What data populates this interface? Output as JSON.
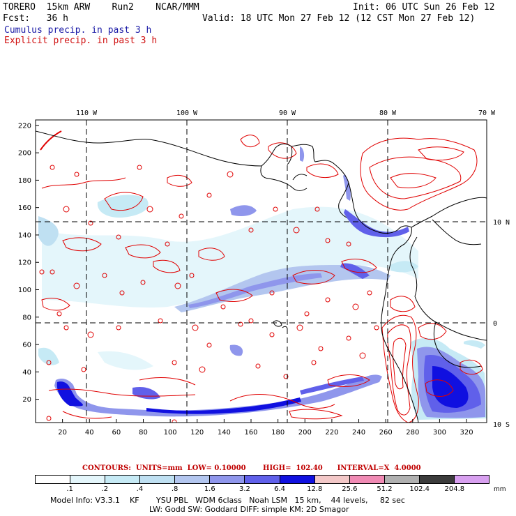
{
  "header": {
    "model": "TORERO  15km ARW    Run2    NCAR/MMM",
    "init": "Init: 06 UTC Sun 26 Feb 12",
    "fcst": "Fcst:   36 h",
    "valid": "Valid: 18 UTC Mon 27 Feb 12 (12 CST Mon 27 Feb 12)",
    "field1": "Cumulus precip. in past 3 h",
    "field2": "Explicit precip. in past 3 h"
  },
  "map": {
    "lon_labels": [
      "110 W",
      "100 W",
      "90 W",
      "80 W",
      "70 W"
    ],
    "lat_labels": [
      "10 N",
      "0",
      "10 S"
    ],
    "y_ticks": [
      "220",
      "200",
      "180",
      "160",
      "140",
      "120",
      "100",
      "80",
      "60",
      "40",
      "20"
    ],
    "x_ticks": [
      "20",
      "40",
      "60",
      "80",
      "100",
      "120",
      "140",
      "160",
      "180",
      "200",
      "220",
      "240",
      "260",
      "280",
      "300",
      "320"
    ],
    "x_grid_range": [
      0,
      335
    ],
    "y_grid_range": [
      3,
      224
    ],
    "colors": {
      "contour": "#e00000",
      "coast": "#000000",
      "grid": "#000000"
    }
  },
  "contours": {
    "label": "CONTOURS:  UNITS=mm  LOW= 0.10000       HIGH=  102.40      INTERVAL=X  4.0000"
  },
  "colorbar": {
    "colors": [
      "#ffffff",
      "#e4f6fb",
      "#c6eaf5",
      "#bfe0f2",
      "#b3c6ef",
      "#8f96ec",
      "#6060ea",
      "#1010e0",
      "#f3c8c8",
      "#f08ab4",
      "#b0b0b0",
      "#3c3c3c",
      "#d8a0f0"
    ],
    "labels": [
      ".1",
      ".2",
      ".4",
      ".8",
      "1.6",
      "3.2",
      "6.4",
      "12.8",
      "25.6",
      "51.2",
      "102.4",
      "204.8"
    ],
    "units": "mm"
  },
  "footer": {
    "line1": "Model Info: V3.3.1    KF       YSU PBL   WDM 6class   Noah LSM   15 km,    44 levels,     82 sec",
    "line2": "LW: Godd SW: Goddard DIFF: simple KM: 2D Smagor"
  }
}
